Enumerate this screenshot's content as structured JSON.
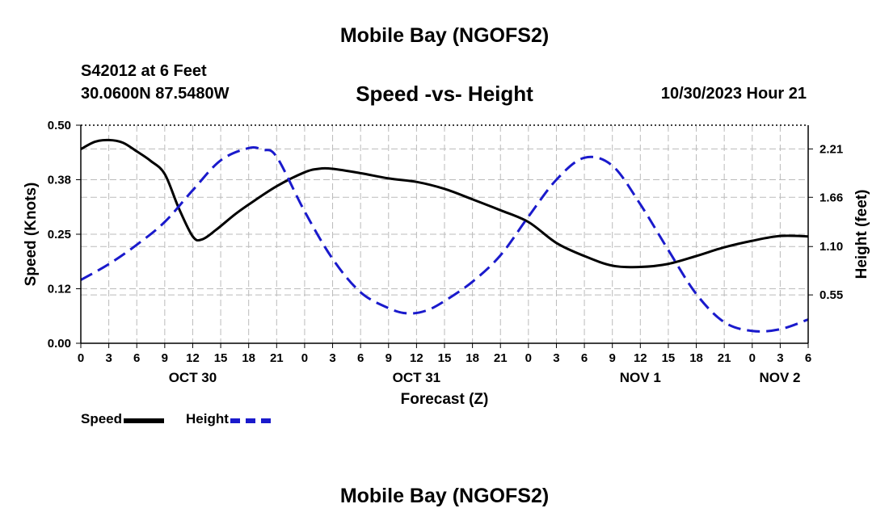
{
  "header": {
    "title": "Mobile Bay (NGOFS2)",
    "station": "S42012 at 6 Feet",
    "coords": "30.0600N  87.5480W",
    "subtitle": "Speed -vs- Height",
    "datetime": "10/30/2023 Hour 21"
  },
  "footer": {
    "title": "Mobile Bay (NGOFS2)"
  },
  "legend": {
    "speed_label": "Speed",
    "height_label": "Height"
  },
  "colors": {
    "speed": "#000000",
    "height": "#1a1acc",
    "grid": "#bbbbbb"
  },
  "chart_data": {
    "type": "line",
    "title": "Speed -vs- Height",
    "xlabel": "Forecast (Z)",
    "ylabel_left": "Speed (Knots)",
    "ylabel_right": "Height (feet)",
    "grid": true,
    "x_range_hours": [
      0,
      78
    ],
    "ylim_left": [
      0.0,
      0.5
    ],
    "ylim_right": [
      0.0,
      2.48
    ],
    "x_tick_labels": [
      "0",
      "3",
      "6",
      "9",
      "12",
      "15",
      "18",
      "21",
      "0",
      "3",
      "6",
      "9",
      "12",
      "15",
      "18",
      "21",
      "0",
      "3",
      "6",
      "9",
      "12",
      "15",
      "18",
      "21",
      "0",
      "3",
      "6"
    ],
    "date_labels": [
      {
        "label": "OCT 30",
        "hour": 12
      },
      {
        "label": "OCT 31",
        "hour": 36
      },
      {
        "label": "NOV 1",
        "hour": 60
      },
      {
        "label": "NOV 2",
        "hour": 78
      }
    ],
    "y_left_ticks": [
      {
        "value": 0.0,
        "label": "0.00"
      },
      {
        "value": 0.125,
        "label": "0.12"
      },
      {
        "value": 0.25,
        "label": "0.25"
      },
      {
        "value": 0.375,
        "label": "0.38"
      },
      {
        "value": 0.5,
        "label": "0.50"
      }
    ],
    "y_right_ticks": [
      {
        "value": 0.55,
        "label": "0.55"
      },
      {
        "value": 1.1,
        "label": "1.10"
      },
      {
        "value": 1.66,
        "label": "1.66"
      },
      {
        "value": 2.21,
        "label": "2.21"
      }
    ],
    "series": [
      {
        "name": "Speed",
        "axis": "left",
        "style": "solid",
        "x": [
          0,
          1.5,
          3,
          4.5,
          6,
          7.5,
          9,
          10.5,
          12,
          13,
          14.5,
          16.5,
          18,
          21,
          24,
          25.5,
          27,
          30,
          33,
          36,
          39,
          42,
          45,
          48,
          51,
          54,
          57,
          60,
          63,
          66,
          69,
          72,
          75,
          78
        ],
        "y": [
          0.445,
          0.462,
          0.466,
          0.46,
          0.44,
          0.418,
          0.388,
          0.31,
          0.245,
          0.238,
          0.26,
          0.295,
          0.318,
          0.36,
          0.392,
          0.4,
          0.4,
          0.39,
          0.378,
          0.37,
          0.354,
          0.33,
          0.305,
          0.278,
          0.23,
          0.2,
          0.178,
          0.175,
          0.182,
          0.2,
          0.22,
          0.235,
          0.246,
          0.245
        ]
      },
      {
        "name": "Height",
        "axis": "right",
        "style": "dashed",
        "x": [
          0,
          3,
          6,
          9,
          12,
          15,
          18,
          19.5,
          21,
          24,
          27,
          30,
          33,
          35,
          37,
          39,
          42,
          45,
          48,
          51,
          54,
          57,
          60,
          63,
          66,
          69,
          72,
          75,
          78
        ],
        "y": [
          0.72,
          0.9,
          1.12,
          1.38,
          1.74,
          2.08,
          2.22,
          2.2,
          2.12,
          1.5,
          0.96,
          0.58,
          0.4,
          0.34,
          0.37,
          0.48,
          0.7,
          1.0,
          1.44,
          1.86,
          2.11,
          2.02,
          1.58,
          1.06,
          0.56,
          0.24,
          0.14,
          0.16,
          0.27
        ]
      }
    ]
  }
}
